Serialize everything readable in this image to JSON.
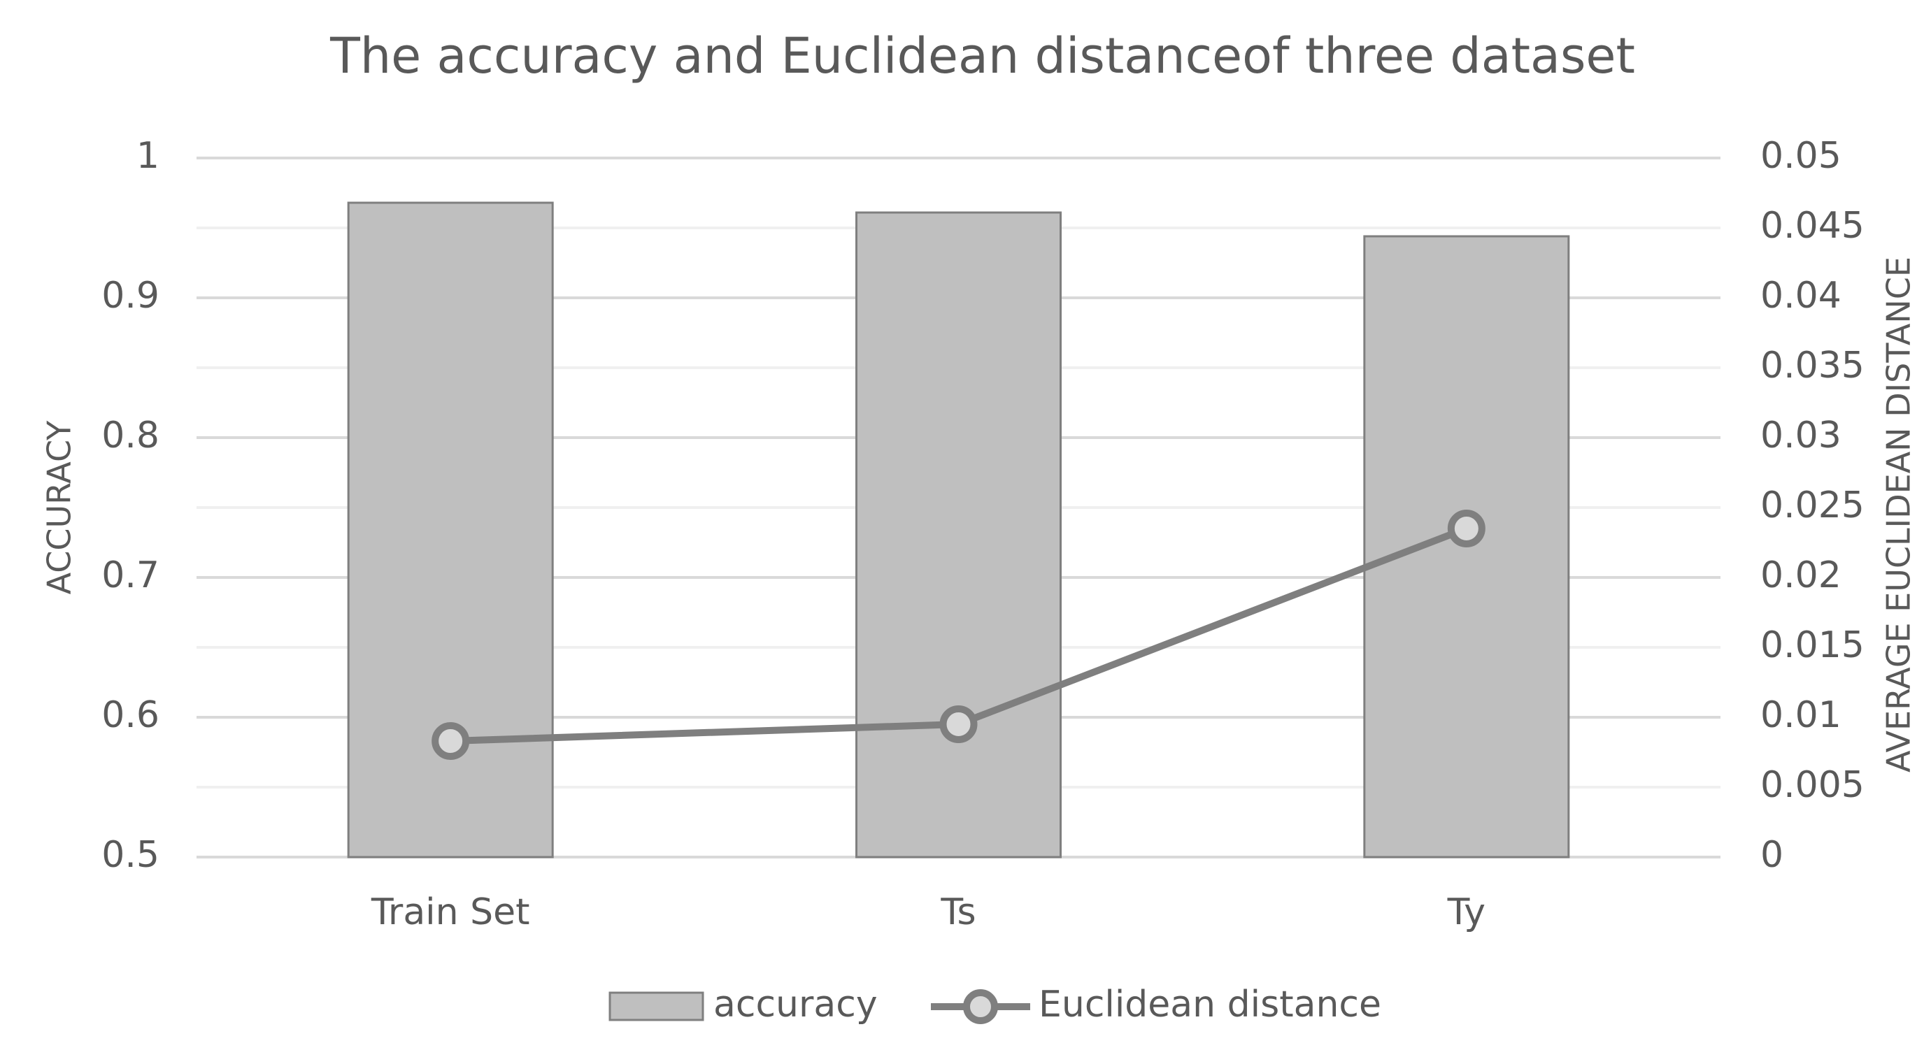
{
  "chart_data": {
    "type": "bar+line",
    "title": "The accuracy and Euclidean distanceof three dataset",
    "categories": [
      "Train Set",
      "Ts",
      "Ty"
    ],
    "series": [
      {
        "name": "accuracy",
        "type": "bar",
        "color": "#bfbfbf",
        "values": [
          0.968,
          0.961,
          0.944
        ]
      },
      {
        "name": "Euclidean distance",
        "type": "line",
        "axis": "y2",
        "color": "#7f7f7f",
        "values": [
          0.0083,
          0.0095,
          0.0235
        ]
      }
    ],
    "ylabel": "ACCURACY",
    "y2label": "AVERAGE EUCLIDEAN DISTANCE",
    "ylim": [
      0.5,
      1
    ],
    "yticks": [
      0.5,
      0.6,
      0.7,
      0.8,
      0.9,
      1
    ],
    "y2lim": [
      0,
      0.05
    ],
    "y2ticks": [
      0,
      0.005,
      0.01,
      0.015,
      0.02,
      0.025,
      0.03,
      0.035,
      0.04,
      0.045,
      0.05
    ],
    "grid": true,
    "legend": "bottom"
  }
}
